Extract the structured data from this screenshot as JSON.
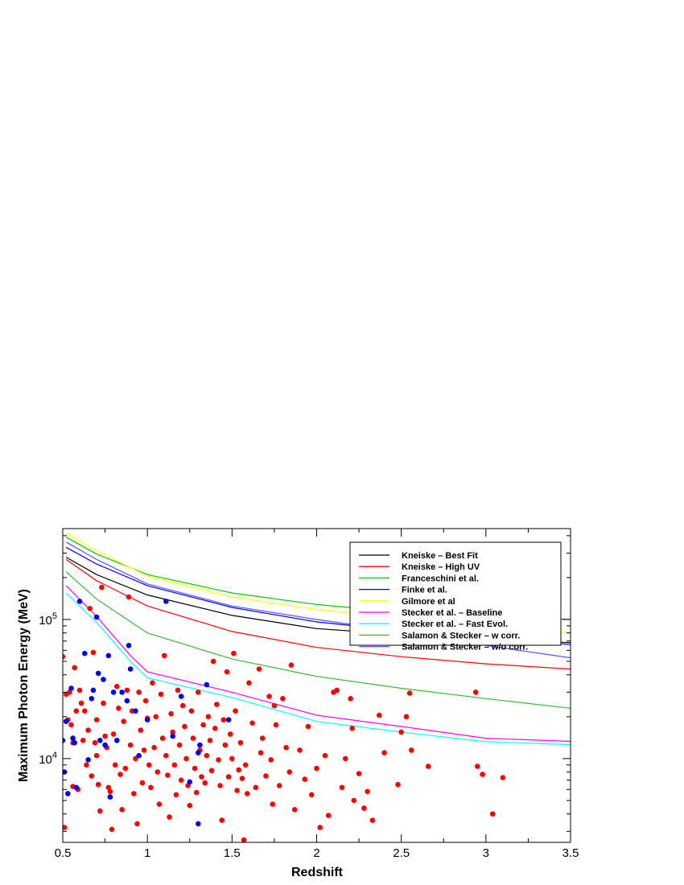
{
  "chart_data": {
    "type": "scatter",
    "xlabel": "Redshift",
    "ylabel": "Maximum Photon Energy (MeV)",
    "xlim": [
      0.5,
      3.5
    ],
    "ylim": [
      2500,
      450000
    ],
    "yscale": "log",
    "x_ticks": [
      0.5,
      1,
      1.5,
      2,
      2.5,
      3,
      3.5
    ],
    "x_tick_labels": [
      "0.5",
      "1",
      "1.5",
      "2",
      "2.5",
      "3",
      "3.5"
    ],
    "y_ticks": [
      10000,
      100000
    ],
    "y_tick_labels": [
      {
        "base": "10",
        "exp": "4"
      },
      {
        "base": "10",
        "exp": "5"
      }
    ],
    "grid": false,
    "legend_position": "top-right",
    "series": [
      {
        "name": "Kneiske – Best Fit",
        "kind": "line",
        "color": "#000000",
        "x": [
          0.52,
          0.7,
          1.0,
          1.5,
          2.0,
          2.5,
          3.0,
          3.5
        ],
        "y": [
          280000,
          210000,
          150000,
          107000,
          86000,
          78000,
          73000,
          68000
        ]
      },
      {
        "name": "Kneiske – High UV",
        "kind": "line",
        "color": "#ff0000",
        "x": [
          0.52,
          0.7,
          1.0,
          1.5,
          2.0,
          2.5,
          3.0,
          3.5
        ],
        "y": [
          270000,
          190000,
          125000,
          82000,
          63000,
          54000,
          48000,
          44000
        ]
      },
      {
        "name": "Franceschini et al.",
        "kind": "line",
        "color": "#00cc00",
        "x": [
          0.52,
          0.7,
          1.0,
          1.5,
          2.0,
          2.5,
          3.0,
          3.5
        ],
        "y": [
          390000,
          295000,
          210000,
          155000,
          128000,
          113000,
          105000,
          100000
        ]
      },
      {
        "name": "Finke et al.",
        "kind": "line",
        "color": "#0000ff",
        "x": [
          0.52,
          0.7,
          1.0,
          1.5,
          2.0,
          2.5,
          3.0,
          3.5
        ],
        "y": [
          330000,
          250000,
          175000,
          122000,
          96000,
          83000,
          74000,
          66000
        ]
      },
      {
        "name": "Gilmore et al",
        "kind": "line",
        "color": "#ffff00",
        "x": [
          0.52,
          0.7,
          1.0,
          1.5,
          2.0,
          2.5,
          3.0,
          3.5
        ],
        "y": [
          420000,
          310000,
          205000,
          145000,
          118000,
          103000,
          90000,
          80000
        ]
      },
      {
        "name": "Stecker et al. – Baseline",
        "kind": "line",
        "color": "#ff00ff",
        "x": [
          0.52,
          0.7,
          0.9,
          1.0,
          1.5,
          2.0,
          2.5,
          3.0,
          3.5
        ],
        "y": [
          175000,
          105000,
          55000,
          42000,
          30000,
          20500,
          17000,
          14000,
          13300
        ]
      },
      {
        "name": "Stecker et al. – Fast Evol.",
        "kind": "line",
        "color": "#00ffff",
        "x": [
          0.52,
          0.7,
          0.9,
          1.0,
          1.5,
          2.0,
          2.5,
          3.0,
          3.5
        ],
        "y": [
          155000,
          95000,
          50000,
          38000,
          27500,
          18500,
          15500,
          13200,
          12600
        ]
      },
      {
        "name": "Salamon & Stecker – w corr.",
        "kind": "line",
        "color": "#33bb33",
        "x": [
          0.52,
          0.7,
          1.0,
          1.5,
          2.0,
          2.5,
          3.0,
          3.5
        ],
        "y": [
          220000,
          140000,
          80000,
          52000,
          39000,
          32000,
          27000,
          23000
        ]
      },
      {
        "name": "Salamon & Stecker – w/o corr.",
        "kind": "line",
        "color": "#5555ff",
        "x": [
          0.52,
          0.7,
          1.0,
          1.5,
          2.0,
          2.5,
          3.0,
          3.5
        ],
        "y": [
          360000,
          270000,
          180000,
          125000,
          100000,
          82000,
          65000,
          53000
        ]
      },
      {
        "kind": "scatter",
        "color": "#ff0000",
        "points": [
          [
            0.5,
            54000
          ],
          [
            0.51,
            3200
          ],
          [
            0.52,
            29000
          ],
          [
            0.53,
            19000
          ],
          [
            0.54,
            30000
          ],
          [
            0.55,
            17500
          ],
          [
            0.56,
            13000
          ],
          [
            0.56,
            6300
          ],
          [
            0.57,
            45000
          ],
          [
            0.58,
            22000
          ],
          [
            0.59,
            6000
          ],
          [
            0.6,
            31000
          ],
          [
            0.61,
            25000
          ],
          [
            0.62,
            13500
          ],
          [
            0.63,
            22000
          ],
          [
            0.64,
            9000
          ],
          [
            0.65,
            16000
          ],
          [
            0.66,
            120000
          ],
          [
            0.67,
            7500
          ],
          [
            0.68,
            58000
          ],
          [
            0.69,
            13000
          ],
          [
            0.7,
            10500
          ],
          [
            0.7,
            19000
          ],
          [
            0.71,
            6500
          ],
          [
            0.72,
            4200
          ],
          [
            0.73,
            170000
          ],
          [
            0.74,
            25000
          ],
          [
            0.75,
            14500
          ],
          [
            0.76,
            12000
          ],
          [
            0.77,
            6200
          ],
          [
            0.78,
            5800
          ],
          [
            0.79,
            3100
          ],
          [
            0.8,
            15000
          ],
          [
            0.81,
            9000
          ],
          [
            0.82,
            33000
          ],
          [
            0.83,
            23000
          ],
          [
            0.84,
            7700
          ],
          [
            0.85,
            4300
          ],
          [
            0.86,
            18500
          ],
          [
            0.87,
            8500
          ],
          [
            0.88,
            31000
          ],
          [
            0.89,
            145000
          ],
          [
            0.9,
            12500
          ],
          [
            0.91,
            22000
          ],
          [
            0.92,
            5600
          ],
          [
            0.93,
            10000
          ],
          [
            0.94,
            3400
          ],
          [
            0.95,
            30000
          ],
          [
            0.96,
            16000
          ],
          [
            0.97,
            6700
          ],
          [
            0.98,
            11500
          ],
          [
            0.99,
            26000
          ],
          [
            1.0,
            19500
          ],
          [
            1.01,
            9000
          ],
          [
            1.02,
            6200
          ],
          [
            1.03,
            35000
          ],
          [
            1.04,
            12000
          ],
          [
            1.05,
            20000
          ],
          [
            1.06,
            8000
          ],
          [
            1.07,
            4700
          ],
          [
            1.08,
            29000
          ],
          [
            1.09,
            14000
          ],
          [
            1.1,
            55000
          ],
          [
            1.11,
            10500
          ],
          [
            1.12,
            7600
          ],
          [
            1.13,
            3800
          ],
          [
            1.14,
            21000
          ],
          [
            1.15,
            15500
          ],
          [
            1.16,
            9000
          ],
          [
            1.17,
            5500
          ],
          [
            1.18,
            31000
          ],
          [
            1.19,
            12500
          ],
          [
            1.2,
            7000
          ],
          [
            1.21,
            24000
          ],
          [
            1.22,
            17000
          ],
          [
            1.23,
            10000
          ],
          [
            1.24,
            6400
          ],
          [
            1.25,
            4600
          ],
          [
            1.26,
            22000
          ],
          [
            1.27,
            14000
          ],
          [
            1.28,
            8500
          ],
          [
            1.29,
            5700
          ],
          [
            1.3,
            30000
          ],
          [
            1.31,
            11500
          ],
          [
            1.32,
            7400
          ],
          [
            1.33,
            17500
          ],
          [
            1.34,
            6700
          ],
          [
            1.35,
            10500
          ],
          [
            1.36,
            20000
          ],
          [
            1.37,
            13500
          ],
          [
            1.38,
            8200
          ],
          [
            1.39,
            50000
          ],
          [
            1.4,
            16500
          ],
          [
            1.41,
            24500
          ],
          [
            1.42,
            9800
          ],
          [
            1.43,
            6400
          ],
          [
            1.44,
            3600
          ],
          [
            1.45,
            19000
          ],
          [
            1.46,
            12500
          ],
          [
            1.47,
            42000
          ],
          [
            1.48,
            7400
          ],
          [
            1.49,
            15000
          ],
          [
            1.5,
            10000
          ],
          [
            1.51,
            57000
          ],
          [
            1.52,
            22000
          ],
          [
            1.53,
            5900
          ],
          [
            1.54,
            8300
          ],
          [
            1.55,
            13000
          ],
          [
            1.56,
            7200
          ],
          [
            1.57,
            2600
          ],
          [
            1.58,
            9000
          ],
          [
            1.59,
            5600
          ],
          [
            1.6,
            35000
          ],
          [
            1.62,
            18000
          ],
          [
            1.64,
            6200
          ],
          [
            1.66,
            44000
          ],
          [
            1.67,
            11000
          ],
          [
            1.68,
            14000
          ],
          [
            1.7,
            7500
          ],
          [
            1.72,
            28000
          ],
          [
            1.73,
            9800
          ],
          [
            1.74,
            4700
          ],
          [
            1.75,
            24000
          ],
          [
            1.76,
            17500
          ],
          [
            1.78,
            6400
          ],
          [
            1.8,
            27000
          ],
          [
            1.82,
            12000
          ],
          [
            1.84,
            8000
          ],
          [
            1.85,
            47000
          ],
          [
            1.87,
            4300
          ],
          [
            1.9,
            11500
          ],
          [
            1.93,
            7100
          ],
          [
            1.95,
            17000
          ],
          [
            1.97,
            5500
          ],
          [
            2.0,
            8500
          ],
          [
            2.02,
            3200
          ],
          [
            2.05,
            10500
          ],
          [
            2.07,
            3900
          ],
          [
            2.1,
            30000
          ],
          [
            2.12,
            31000
          ],
          [
            2.15,
            6200
          ],
          [
            2.17,
            10000
          ],
          [
            2.2,
            27000
          ],
          [
            2.21,
            16500
          ],
          [
            2.22,
            5000
          ],
          [
            2.25,
            7800
          ],
          [
            2.28,
            4400
          ],
          [
            2.3,
            5800
          ],
          [
            2.33,
            3600
          ],
          [
            2.37,
            20500
          ],
          [
            2.4,
            11000
          ],
          [
            2.48,
            6500
          ],
          [
            2.5,
            15500
          ],
          [
            2.53,
            20000
          ],
          [
            2.55,
            29500
          ],
          [
            2.56,
            11500
          ],
          [
            2.66,
            8800
          ],
          [
            2.94,
            30000
          ],
          [
            2.95,
            8800
          ],
          [
            2.98,
            7700
          ],
          [
            3.04,
            4000
          ],
          [
            3.1,
            7300
          ]
        ]
      },
      {
        "kind": "scatter",
        "color": "#0000ff",
        "points": [
          [
            0.5,
            13500
          ],
          [
            0.51,
            8000
          ],
          [
            0.52,
            18500
          ],
          [
            0.53,
            5600
          ],
          [
            0.55,
            32000
          ],
          [
            0.56,
            14000
          ],
          [
            0.57,
            13000
          ],
          [
            0.58,
            6200
          ],
          [
            0.6,
            135000
          ],
          [
            0.63,
            57000
          ],
          [
            0.65,
            9800
          ],
          [
            0.67,
            27000
          ],
          [
            0.68,
            31000
          ],
          [
            0.7,
            104000
          ],
          [
            0.71,
            41000
          ],
          [
            0.72,
            13500
          ],
          [
            0.74,
            37000
          ],
          [
            0.75,
            12500
          ],
          [
            0.77,
            55000
          ],
          [
            0.78,
            5300
          ],
          [
            0.8,
            30000
          ],
          [
            0.82,
            13500
          ],
          [
            0.85,
            30000
          ],
          [
            0.88,
            26000
          ],
          [
            0.89,
            65000
          ],
          [
            0.9,
            44000
          ],
          [
            0.93,
            22000
          ],
          [
            0.95,
            10500
          ],
          [
            1.0,
            19000
          ],
          [
            1.11,
            135000
          ],
          [
            1.15,
            14500
          ],
          [
            1.2,
            28000
          ],
          [
            1.25,
            6800
          ],
          [
            1.3,
            11000
          ],
          [
            1.31,
            12500
          ],
          [
            1.35,
            34000
          ],
          [
            1.3,
            3400
          ],
          [
            1.48,
            19000
          ]
        ]
      }
    ]
  }
}
